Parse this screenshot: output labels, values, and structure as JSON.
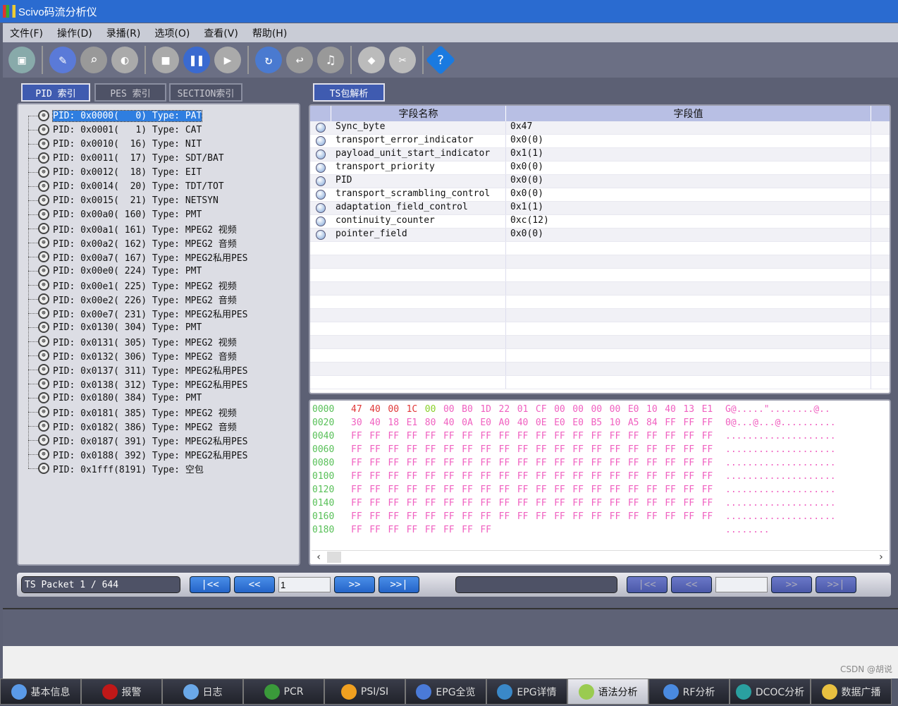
{
  "window": {
    "title": "Scivo码流分析仪"
  },
  "menu": [
    "文件(F)",
    "操作(D)",
    "录播(R)",
    "选项(O)",
    "查看(V)",
    "帮助(H)"
  ],
  "toolbar": [
    {
      "icon": "network-computer-icon",
      "color": "#8aa",
      "glyph": "▣"
    },
    {
      "icon": "capture-device-icon",
      "color": "#5a7ad8",
      "glyph": "✎"
    },
    {
      "icon": "search-folder-icon",
      "color": "#999",
      "glyph": "⌕"
    },
    {
      "icon": "satellite-dish-icon",
      "color": "#aaa",
      "glyph": "◐"
    },
    {
      "icon": "stop-icon",
      "color": "#aaa",
      "glyph": "■"
    },
    {
      "icon": "pause-icon",
      "color": "#3a6ad0",
      "glyph": "❚❚"
    },
    {
      "icon": "play-icon",
      "color": "#aaa",
      "glyph": "▶"
    },
    {
      "icon": "open-folder-icon",
      "color": "#4a7ad0",
      "glyph": "↻"
    },
    {
      "icon": "folder-return-icon",
      "color": "#999",
      "glyph": "↩"
    },
    {
      "icon": "media-delete-icon",
      "color": "#999",
      "glyph": "♫"
    },
    {
      "icon": "eraser-icon",
      "color": "#bbb",
      "glyph": "◆"
    },
    {
      "icon": "tools-icon",
      "color": "#bbb",
      "glyph": "✂"
    },
    {
      "icon": "help-icon",
      "color": "#1a7ae0",
      "glyph": "?"
    }
  ],
  "left_tabs": [
    "PID 索引",
    "PES 索引",
    "SECTION索引"
  ],
  "right_tab": "TS包解析",
  "pid_tree": [
    "PID: 0x0000(   0) Type: PAT",
    "PID: 0x0001(   1) Type: CAT",
    "PID: 0x0010(  16) Type: NIT",
    "PID: 0x0011(  17) Type: SDT/BAT",
    "PID: 0x0012(  18) Type: EIT",
    "PID: 0x0014(  20) Type: TDT/TOT",
    "PID: 0x0015(  21) Type: NETSYN",
    "PID: 0x00a0( 160) Type: PMT",
    "PID: 0x00a1( 161) Type: MPEG2 视频",
    "PID: 0x00a2( 162) Type: MPEG2 音频",
    "PID: 0x00a7( 167) Type: MPEG2私用PES",
    "PID: 0x00e0( 224) Type: PMT",
    "PID: 0x00e1( 225) Type: MPEG2 视频",
    "PID: 0x00e2( 226) Type: MPEG2 音频",
    "PID: 0x00e7( 231) Type: MPEG2私用PES",
    "PID: 0x0130( 304) Type: PMT",
    "PID: 0x0131( 305) Type: MPEG2 视频",
    "PID: 0x0132( 306) Type: MPEG2 音频",
    "PID: 0x0137( 311) Type: MPEG2私用PES",
    "PID: 0x0138( 312) Type: MPEG2私用PES",
    "PID: 0x0180( 384) Type: PMT",
    "PID: 0x0181( 385) Type: MPEG2 视频",
    "PID: 0x0182( 386) Type: MPEG2 音频",
    "PID: 0x0187( 391) Type: MPEG2私用PES",
    "PID: 0x0188( 392) Type: MPEG2私用PES",
    "PID: 0x1fff(8191) Type: 空包"
  ],
  "fields": {
    "headers": [
      "字段名称",
      "字段值"
    ],
    "rows": [
      [
        "Sync_byte",
        "0x47"
      ],
      [
        "transport_error_indicator",
        "0x0(0)"
      ],
      [
        "payload_unit_start_indicator",
        "0x1(1)"
      ],
      [
        "transport_priority",
        "0x0(0)"
      ],
      [
        "PID",
        "0x0(0)"
      ],
      [
        "transport_scrambling_control",
        "0x0(0)"
      ],
      [
        "adaptation_field_control",
        "0x1(1)"
      ],
      [
        "continuity_counter",
        "0xc(12)"
      ],
      [
        "pointer_field",
        "0x0(0)"
      ]
    ]
  },
  "hex": {
    "colors": {
      "header": "#e03838",
      "pointer": "#88d028",
      "payload": "#f060c0",
      "offset": "#58c058"
    },
    "rows": [
      {
        "offset": "0000",
        "bytes": "47 40 00 1C 00 00 B0 1D 22 01 CF 00 00 00 00 E0 10 40 13 E1",
        "ascii": "G@.....\"........@.."
      },
      {
        "offset": "0020",
        "bytes": "30 40 18 E1 80 40 0A E0 A0 40 0E E0 E0 B5 10 A5 84 FF FF FF",
        "ascii": "0@...@...@.........."
      },
      {
        "offset": "0040",
        "bytes": "FF FF FF FF FF FF FF FF FF FF FF FF FF FF FF FF FF FF FF FF",
        "ascii": "...................."
      },
      {
        "offset": "0060",
        "bytes": "FF FF FF FF FF FF FF FF FF FF FF FF FF FF FF FF FF FF FF FF",
        "ascii": "...................."
      },
      {
        "offset": "0080",
        "bytes": "FF FF FF FF FF FF FF FF FF FF FF FF FF FF FF FF FF FF FF FF",
        "ascii": "...................."
      },
      {
        "offset": "0100",
        "bytes": "FF FF FF FF FF FF FF FF FF FF FF FF FF FF FF FF FF FF FF FF",
        "ascii": "...................."
      },
      {
        "offset": "0120",
        "bytes": "FF FF FF FF FF FF FF FF FF FF FF FF FF FF FF FF FF FF FF FF",
        "ascii": "...................."
      },
      {
        "offset": "0140",
        "bytes": "FF FF FF FF FF FF FF FF FF FF FF FF FF FF FF FF FF FF FF FF",
        "ascii": "...................."
      },
      {
        "offset": "0160",
        "bytes": "FF FF FF FF FF FF FF FF FF FF FF FF FF FF FF FF FF FF FF FF",
        "ascii": "...................."
      },
      {
        "offset": "0180",
        "bytes": "FF FF FF FF FF FF FF FF",
        "ascii": "........"
      }
    ]
  },
  "nav": {
    "packet_label": "TS Packet  1 / 644",
    "first": "|<<",
    "prev": "<<",
    "page_input": "1",
    "next": ">>",
    "last": ">>|",
    "right_input": ""
  },
  "taskbar": [
    {
      "label": "基本信息",
      "icon": "info-icon",
      "color": "#5a9ae8"
    },
    {
      "label": "报警",
      "icon": "alarm-icon",
      "color": "#c01818"
    },
    {
      "label": "日志",
      "icon": "log-icon",
      "color": "#6aa8e8"
    },
    {
      "label": "PCR",
      "icon": "clock-icon",
      "color": "#3a9a3a"
    },
    {
      "label": "PSI/SI",
      "icon": "psi-icon",
      "color": "#f0a020"
    },
    {
      "label": "EPG全览",
      "icon": "epg-overview-icon",
      "color": "#4a7ad8"
    },
    {
      "label": "EPG详情",
      "icon": "epg-detail-icon",
      "color": "#3a88c8"
    },
    {
      "label": "语法分析",
      "icon": "syntax-icon",
      "color": "#9acb50",
      "active": true
    },
    {
      "label": "RF分析",
      "icon": "rf-icon",
      "color": "#4a8ae0"
    },
    {
      "label": "DCOC分析",
      "icon": "dcoc-icon",
      "color": "#2aa0a0"
    },
    {
      "label": "数据广播",
      "icon": "data-broadcast-icon",
      "color": "#e8c040"
    }
  ],
  "watermark": "CSDN @胡说"
}
